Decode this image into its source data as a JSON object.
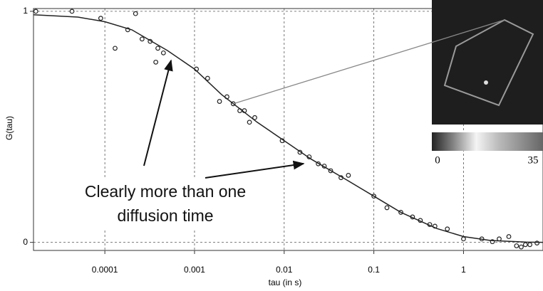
{
  "chart_data": {
    "type": "scatter",
    "x_label": "tau (in s)",
    "y_label": "G(tau)",
    "xscale": "log",
    "grid": true,
    "xlim": [
      1.6e-05,
      7.7
    ],
    "ylim": [
      -0.035,
      1.012
    ],
    "xticks": [
      0.0001,
      0.001,
      0.01,
      0.1,
      1
    ],
    "yticks": [
      0,
      1
    ],
    "series": [
      {
        "name": null,
        "kind": "points",
        "color": "#222",
        "x": [
          1.7e-05,
          4.3e-05,
          9e-05,
          0.00022,
          0.00013,
          0.00018,
          0.00026,
          0.00032,
          0.00039,
          0.00037,
          0.00045,
          0.00105,
          0.0014,
          0.0019,
          0.0023,
          0.0027,
          0.0032,
          0.0036,
          0.0041,
          0.0047,
          0.0095,
          0.015,
          0.019,
          0.024,
          0.028,
          0.033,
          0.043,
          0.052,
          0.1,
          0.14,
          0.2,
          0.27,
          0.33,
          0.42,
          0.48,
          0.66,
          1.0,
          1.6,
          2.1,
          2.5,
          3.2,
          3.9,
          4.4,
          4.9,
          5.5,
          6.6
        ],
        "values": [
          1.0,
          1.0,
          0.97,
          0.99,
          0.84,
          0.92,
          0.88,
          0.87,
          0.84,
          0.78,
          0.82,
          0.75,
          0.71,
          0.61,
          0.63,
          0.6,
          0.57,
          0.57,
          0.52,
          0.54,
          0.44,
          0.39,
          0.37,
          0.34,
          0.33,
          0.31,
          0.28,
          0.29,
          0.2,
          0.15,
          0.13,
          0.11,
          0.095,
          0.077,
          0.07,
          0.058,
          0.015,
          0.015,
          0.003,
          0.015,
          0.025,
          -0.015,
          -0.02,
          -0.01,
          -0.01,
          -0.003
        ]
      },
      {
        "name": null,
        "kind": "fit",
        "color": "#222",
        "x": [
          1.6e-05,
          5e-05,
          0.0001,
          0.0002,
          0.0005,
          0.001,
          0.002,
          0.005,
          0.01,
          0.02,
          0.05,
          0.1,
          0.2,
          0.5,
          1,
          2,
          5,
          7.7
        ],
        "values": [
          0.985,
          0.975,
          0.955,
          0.92,
          0.83,
          0.75,
          0.64,
          0.52,
          0.44,
          0.36,
          0.27,
          0.2,
          0.13,
          0.06,
          0.025,
          0.008,
          0.001,
          0
        ]
      }
    ],
    "annotation": [
      "Clearly more than one",
      "diffusion time"
    ],
    "colorbar": {
      "ticks": [
        0,
        35
      ]
    }
  }
}
